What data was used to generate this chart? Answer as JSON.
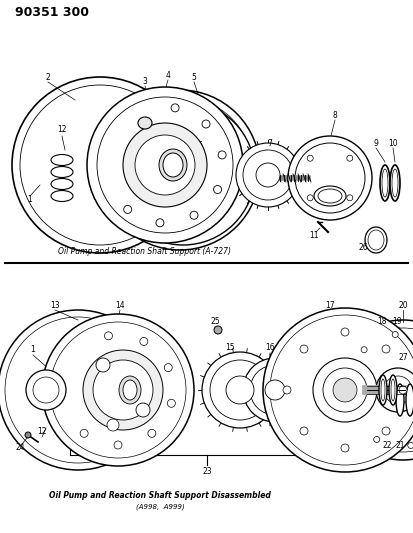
{
  "title": "90351 300",
  "bg_color": "#ffffff",
  "caption1": "Oil Pump and Reaction Shaft Support (A-727)",
  "caption2": "Oil Pump and Reaction Shaft Support Disassembled",
  "caption3": "(A998,  A999)",
  "fig_w": 4.13,
  "fig_h": 5.33,
  "dpi": 100
}
